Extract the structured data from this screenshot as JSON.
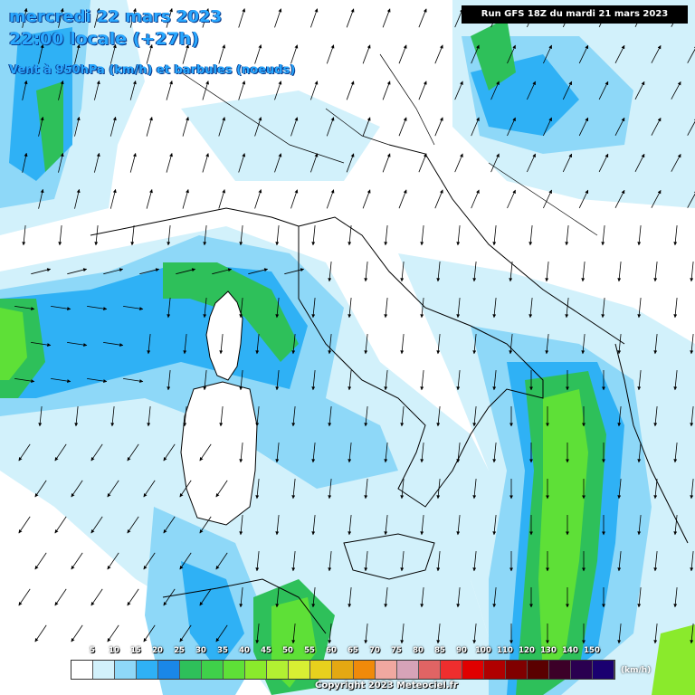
{
  "header": {
    "date_line": "mercredi 22 mars 2023",
    "time_line": "22:00 locale (+27h)",
    "variable_line": "Vent à 950hPa (km/h) et barbules (noeuds)"
  },
  "run_info": "Run GFS 18Z du mardi 21 mars 2023",
  "legend": {
    "values": [
      "5",
      "10",
      "15",
      "20",
      "25",
      "30",
      "35",
      "40",
      "45",
      "50",
      "55",
      "60",
      "65",
      "70",
      "75",
      "80",
      "85",
      "90",
      "100",
      "110",
      "120",
      "130",
      "140",
      "150"
    ],
    "colors": [
      "#ffffff",
      "#d2f1fb",
      "#8ed8f8",
      "#2fb1f5",
      "#1a87e8",
      "#2ec05a",
      "#3fd04a",
      "#5ee037",
      "#8aea2c",
      "#b2f032",
      "#d8ef33",
      "#e8d01d",
      "#e4a812",
      "#f08a0a",
      "#f0a8a0",
      "#d6a3b8",
      "#e06464",
      "#ee2e2e",
      "#e00000",
      "#b00000",
      "#800000",
      "#5a0000",
      "#3c0028",
      "#2a0050",
      "#1a0070"
    ],
    "unit": "(km/h)"
  },
  "copyright": "Copyright 2023 Meteociel.fr"
}
